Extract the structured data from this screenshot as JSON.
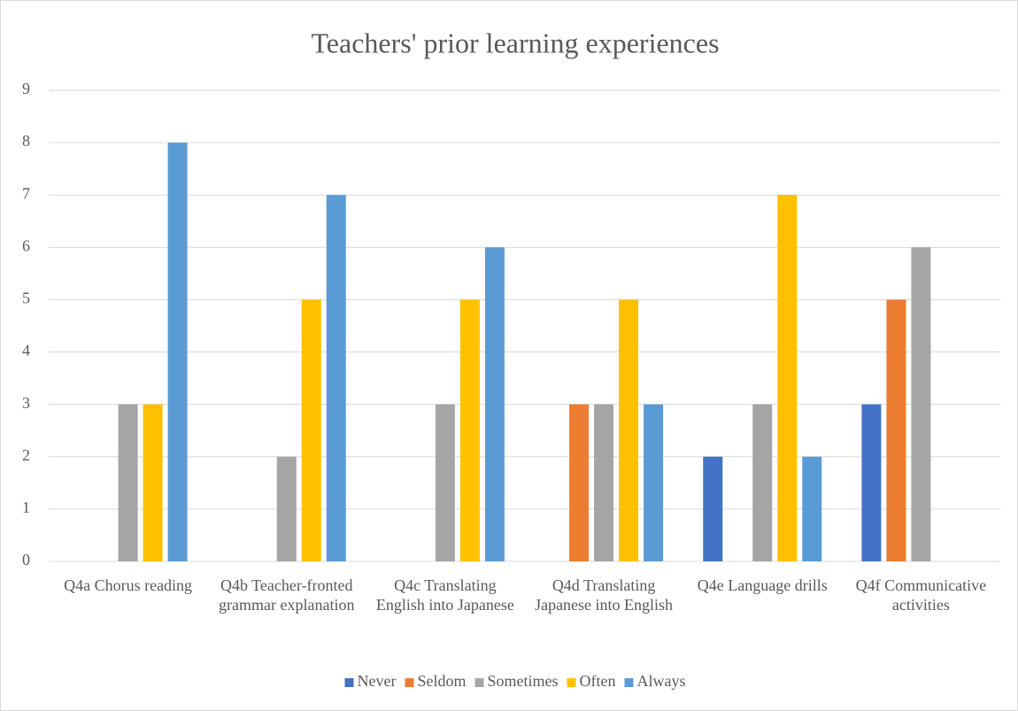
{
  "chart_data": {
    "type": "bar",
    "title": "Teachers' prior learning experiences",
    "categories": [
      "Q4a Chorus reading",
      "Q4b Teacher-fronted grammar explanation",
      "Q4c Translating English into Japanese",
      "Q4d Translating Japanese into English",
      "Q4e  Language drills",
      "Q4f Communicative activities"
    ],
    "series": [
      {
        "name": "Never",
        "color": "#4472c4",
        "values": [
          0,
          0,
          0,
          0,
          2,
          3
        ]
      },
      {
        "name": "Seldom",
        "color": "#ed7d31",
        "values": [
          0,
          0,
          0,
          3,
          0,
          5
        ]
      },
      {
        "name": "Sometimes",
        "color": "#a5a5a5",
        "values": [
          3,
          2,
          3,
          3,
          3,
          6
        ]
      },
      {
        "name": "Often",
        "color": "#ffc000",
        "values": [
          3,
          5,
          5,
          5,
          7,
          0
        ]
      },
      {
        "name": "Always",
        "color": "#5b9bd5",
        "values": [
          8,
          7,
          6,
          3,
          2,
          0
        ]
      }
    ],
    "ylim": [
      0,
      9
    ],
    "yticks": [
      0,
      1,
      2,
      3,
      4,
      5,
      6,
      7,
      8,
      9
    ],
    "grid": true,
    "legend": "bottom"
  }
}
